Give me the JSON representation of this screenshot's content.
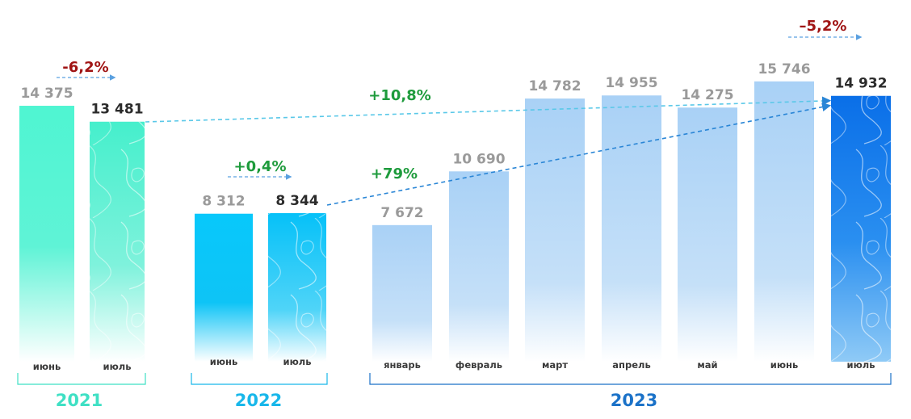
{
  "chart_data": {
    "type": "bar",
    "title": "",
    "unit_hint": "",
    "groups": [
      {
        "year": "2021",
        "color": "#4ff5d2",
        "bars": [
          {
            "month": "июнь",
            "value": 14375,
            "label": "14 375",
            "highlight": false
          },
          {
            "month": "июль",
            "value": 13481,
            "label": "13 481",
            "highlight": true
          }
        ],
        "change": {
          "label": "-6,2%",
          "color": "#a01414"
        }
      },
      {
        "year": "2022",
        "color": "#0fc7f7",
        "bars": [
          {
            "month": "июнь",
            "value": 8312,
            "label": "8 312",
            "highlight": false
          },
          {
            "month": "июль",
            "value": 8344,
            "label": "8 344",
            "highlight": true
          }
        ],
        "change": {
          "label": "+0,4%",
          "color": "#1e9b3c"
        }
      },
      {
        "year": "2023",
        "color": "#9fcbf5",
        "bars": [
          {
            "month": "январь",
            "value": 7672,
            "label": "7 672",
            "highlight": false
          },
          {
            "month": "февраль",
            "value": 10690,
            "label": "10 690",
            "highlight": false
          },
          {
            "month": "март",
            "value": 14782,
            "label": "14 782",
            "highlight": false
          },
          {
            "month": "апрель",
            "value": 14955,
            "label": "14 955",
            "highlight": false
          },
          {
            "month": "май",
            "value": 14275,
            "label": "14 275",
            "highlight": false
          },
          {
            "month": "июнь",
            "value": 15746,
            "label": "15 746",
            "highlight": false
          },
          {
            "month": "июль",
            "value": 14932,
            "label": "14 932",
            "highlight": true
          }
        ],
        "change": {
          "label": "–5,2%",
          "color": "#a01414"
        }
      }
    ],
    "comparisons": [
      {
        "label": "+10,8%",
        "from": "июль 2021",
        "to": "июль 2023",
        "color": "#1e9b3c"
      },
      {
        "label": "+79%",
        "from": "июль 2022",
        "to": "июль 2023",
        "color": "#1e9b3c"
      }
    ]
  },
  "year_colors": {
    "2021": "#3fe0c4",
    "2022": "#18b7ea",
    "2023": "#1b72c8"
  }
}
